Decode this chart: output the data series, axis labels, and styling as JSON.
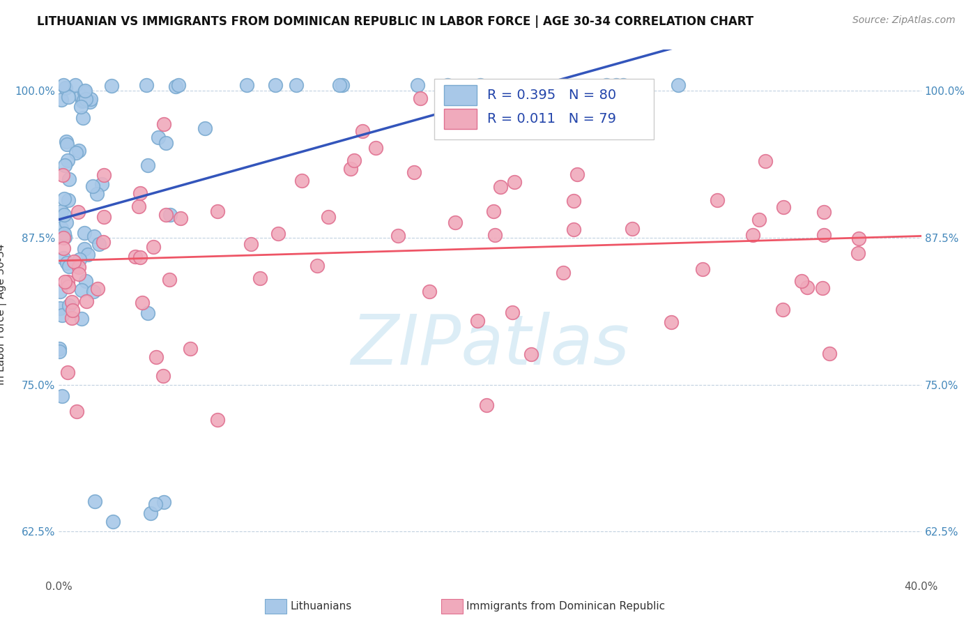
{
  "title": "LITHUANIAN VS IMMIGRANTS FROM DOMINICAN REPUBLIC IN LABOR FORCE | AGE 30-34 CORRELATION CHART",
  "source": "Source: ZipAtlas.com",
  "ylabel": "In Labor Force | Age 30-34",
  "blue_R": 0.395,
  "blue_N": 80,
  "pink_R": 0.011,
  "pink_N": 79,
  "blue_color": "#A8C8E8",
  "blue_edge_color": "#7AAAD0",
  "pink_color": "#F0AABC",
  "pink_edge_color": "#E07090",
  "blue_line_color": "#3355BB",
  "pink_line_color": "#EE5566",
  "watermark_text": "ZIPatlas",
  "watermark_color": "#BBDDEE",
  "legend_text_color": "#2244AA",
  "xlim": [
    0.0,
    0.4
  ],
  "ylim": [
    0.585,
    1.035
  ],
  "yticks": [
    0.625,
    0.75,
    0.875,
    1.0
  ],
  "ytick_labels": [
    "62.5%",
    "75.0%",
    "87.5%",
    "100.0%"
  ],
  "xticks": [
    0.0,
    0.05,
    0.1,
    0.15,
    0.2,
    0.25,
    0.3,
    0.35,
    0.4
  ],
  "xtick_labels": [
    "0.0%",
    "",
    "",
    "",
    "",
    "",
    "",
    "",
    "40.0%"
  ],
  "grid_color": "#BBCCDD",
  "title_fontsize": 12,
  "source_fontsize": 10,
  "tick_fontsize": 11,
  "legend_fontsize": 14,
  "legend_label_blue": "Lithuanians",
  "legend_label_pink": "Immigrants from Dominican Republic"
}
